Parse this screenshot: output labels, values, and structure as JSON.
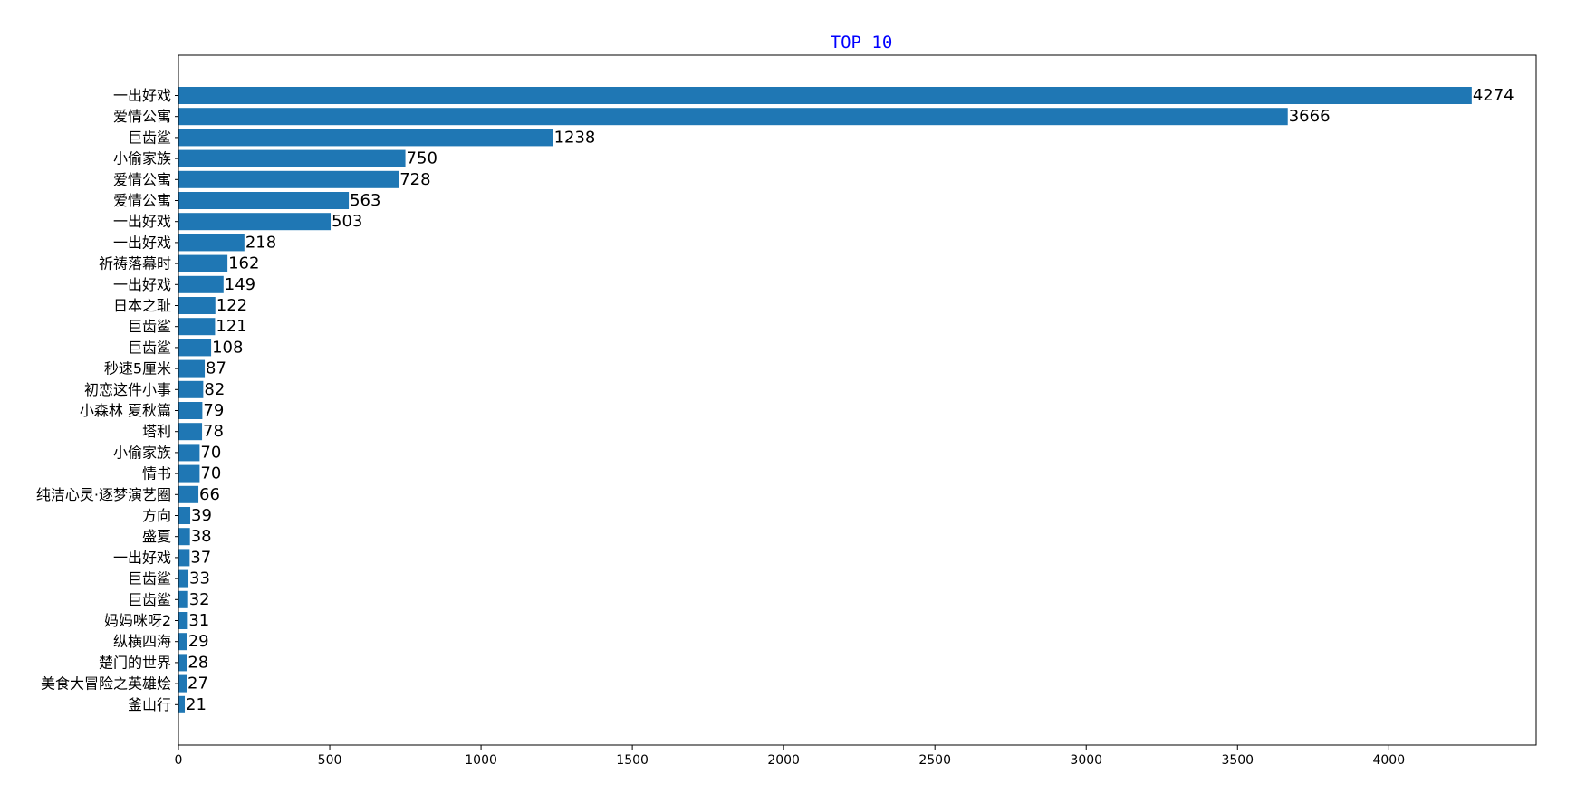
{
  "chart_data": {
    "type": "bar",
    "orientation": "horizontal",
    "title": "TOP 10",
    "title_color": "#0000ff",
    "bar_color": "#1f77b4",
    "xlabel": "",
    "ylabel": "",
    "xlim": [
      0,
      4487
    ],
    "xticks": [
      0,
      500,
      1000,
      1500,
      2000,
      2500,
      3000,
      3500,
      4000
    ],
    "grid": false,
    "categories": [
      "一出好戏",
      "爱情公寓",
      "巨齿鲨",
      "小偷家族",
      "爱情公寓",
      "爱情公寓",
      "一出好戏",
      "一出好戏",
      "祈祷落幕时",
      "一出好戏",
      "日本之耻",
      "巨齿鲨",
      "巨齿鲨",
      "秒速5厘米",
      "初恋这件小事",
      "小森林 夏秋篇",
      "塔利",
      "小偷家族",
      "情书",
      "纯洁心灵·逐梦演艺圈",
      "方向",
      "盛夏",
      "一出好戏",
      "巨齿鲨",
      "巨齿鲨",
      "妈妈咪呀2",
      "纵横四海",
      "楚门的世界",
      "美食大冒险之英雄烩",
      "釜山行"
    ],
    "values": [
      4274,
      3666,
      1238,
      750,
      728,
      563,
      503,
      218,
      162,
      149,
      122,
      121,
      108,
      87,
      82,
      79,
      78,
      70,
      70,
      66,
      39,
      38,
      37,
      33,
      32,
      31,
      29,
      28,
      27,
      21
    ],
    "data_labels": [
      "4274",
      "3666",
      "1238",
      "750",
      "728",
      "563",
      "503",
      "218",
      "162",
      "149",
      "122",
      "121",
      "108",
      "87",
      "82",
      "79",
      "78",
      "70",
      "70",
      "66",
      "39",
      "38",
      "37",
      "33",
      "32",
      "31",
      "29",
      "28",
      "27",
      "21"
    ]
  }
}
